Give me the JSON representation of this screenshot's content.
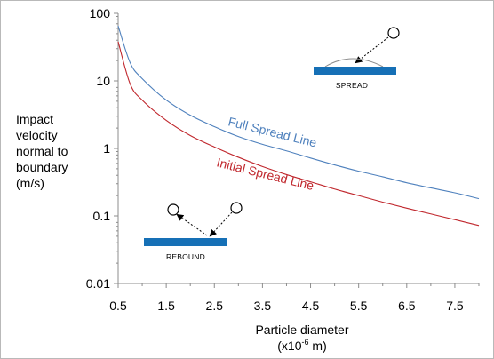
{
  "chart_data": {
    "type": "line",
    "xlabel": "Particle diameter",
    "xlabel_unit": "(x10",
    "xlabel_unit_exp": "-6",
    "xlabel_unit_tail": " m)",
    "ylabel_lines": [
      "Impact",
      "velocity",
      "normal to",
      "boundary",
      "(m/s)"
    ],
    "xlim": [
      0.5,
      8.0
    ],
    "ylim": [
      0.01,
      100
    ],
    "y_scale": "log",
    "x_ticks": [
      "0.5",
      "1.5",
      "2.5",
      "3.5",
      "4.5",
      "5.5",
      "6.5",
      "7.5"
    ],
    "y_ticks": [
      "100",
      "10",
      "1",
      "0.1",
      "0.01"
    ],
    "grid": false,
    "series": [
      {
        "name": "Full Spread Line",
        "color": "#4f81bd",
        "x": [
          0.5,
          0.75,
          1.0,
          1.5,
          2.0,
          2.5,
          3.0,
          3.5,
          4.0,
          4.5,
          5.0,
          5.5,
          6.0,
          6.5,
          7.0,
          7.5,
          8.0
        ],
        "y": [
          65,
          18.5,
          10.8,
          5.2,
          3.1,
          2.1,
          1.5,
          1.15,
          0.92,
          0.72,
          0.57,
          0.46,
          0.38,
          0.31,
          0.26,
          0.22,
          0.18
        ]
      },
      {
        "name": "Initial Spread Line",
        "color": "#c0272d",
        "x": [
          0.5,
          0.75,
          1.0,
          1.5,
          2.0,
          2.5,
          3.0,
          3.5,
          4.0,
          4.5,
          5.0,
          5.5,
          6.0,
          6.5,
          7.0,
          7.5,
          8.0
        ],
        "y": [
          38,
          9.0,
          5.2,
          2.6,
          1.55,
          1.05,
          0.74,
          0.54,
          0.41,
          0.32,
          0.25,
          0.2,
          0.16,
          0.13,
          0.107,
          0.088,
          0.072
        ]
      }
    ],
    "annotations": {
      "spread_label": "SPREAD",
      "rebound_label": "REBOUND"
    }
  }
}
